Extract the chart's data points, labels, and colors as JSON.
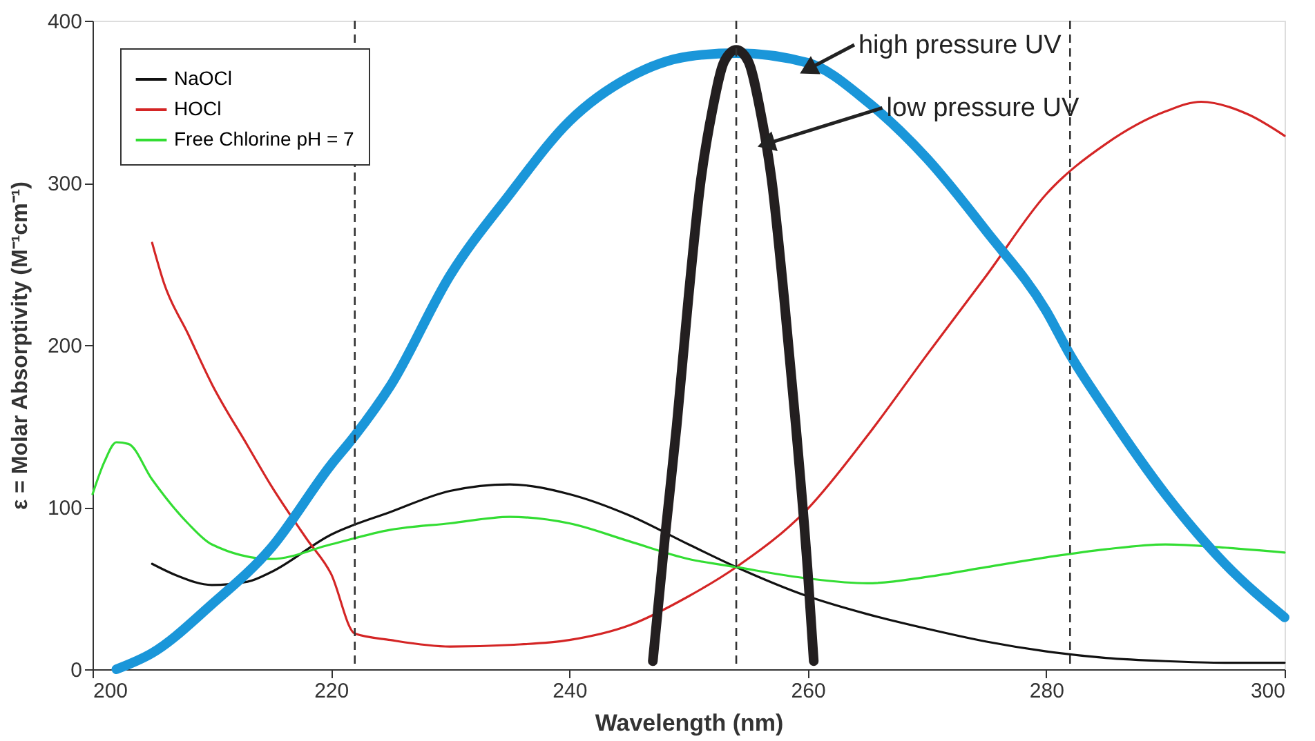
{
  "chart_data": {
    "type": "line",
    "xlabel": "Wavelength (nm)",
    "ylabel": "ε = Molar Absorptivity (M⁻¹cm⁻¹)",
    "xlim": [
      200,
      300
    ],
    "ylim": [
      0,
      400
    ],
    "xticks": [
      200,
      220,
      240,
      260,
      280,
      300
    ],
    "yticks": [
      0,
      100,
      200,
      300,
      400
    ],
    "grid": false,
    "legend": "top left",
    "line_style": "solid",
    "marker": "none",
    "series": [
      {
        "name": "NaOCl",
        "color": "#111111",
        "x": [
          205,
          207,
          210,
          213,
          215,
          220,
          225,
          230,
          235,
          240,
          245,
          250,
          254,
          260,
          265,
          270,
          275,
          280,
          285,
          290,
          295,
          300
        ],
        "values": [
          65,
          58,
          52,
          54,
          60,
          83,
          97,
          110,
          114,
          108,
          95,
          77,
          63,
          45,
          34,
          25,
          17,
          11,
          7,
          5,
          4,
          4
        ]
      },
      {
        "name": "HOCl",
        "color": "#d42525",
        "x": [
          205,
          206,
          208,
          210,
          213,
          215,
          218,
          220,
          222,
          225,
          230,
          235,
          240,
          245,
          250,
          254,
          260,
          265,
          270,
          275,
          280,
          285,
          290,
          293,
          297,
          300
        ],
        "values": [
          263,
          238,
          207,
          176,
          138,
          113,
          80,
          59,
          22,
          18,
          14,
          15,
          18,
          27,
          45,
          63,
          99,
          144,
          194,
          243,
          293,
          324,
          344,
          350,
          342,
          329
        ]
      },
      {
        "name": "Free Chlorine pH = 7",
        "color": "#33dd33",
        "x": [
          200,
          201,
          202,
          203,
          205,
          208,
          210,
          215,
          220,
          225,
          230,
          235,
          240,
          245,
          250,
          254,
          260,
          265,
          270,
          275,
          280,
          285,
          290,
          295,
          300
        ],
        "values": [
          108,
          128,
          140,
          139,
          117,
          90,
          77,
          68,
          77,
          86,
          90,
          94,
          90,
          79,
          68,
          63,
          56,
          53,
          57,
          63,
          69,
          74,
          77,
          75,
          72
        ]
      },
      {
        "color": "#1a96d9",
        "x": [
          202,
          205,
          210,
          215,
          220,
          222,
          225,
          230,
          235,
          240,
          245,
          250,
          254,
          260,
          265,
          270,
          275,
          280,
          282,
          285,
          290,
          295,
          300
        ],
        "values": [
          0,
          10,
          40,
          75,
          126,
          144,
          175,
          243,
          293,
          338,
          365,
          378,
          380,
          374,
          350,
          315,
          270,
          221,
          194,
          160,
          108,
          65,
          32
        ]
      },
      {
        "color": "#231f20",
        "x": [
          247,
          248,
          249,
          250,
          251,
          252,
          253,
          254,
          255,
          256,
          257,
          258,
          259,
          260,
          260.5
        ],
        "values": [
          5,
          80,
          150,
          230,
          300,
          345,
          375,
          382,
          375,
          345,
          300,
          230,
          150,
          60,
          5
        ]
      }
    ],
    "ref_lines": [
      {
        "axis": "x",
        "value": 222,
        "line_style": "dashed"
      },
      {
        "axis": "x",
        "value": 254,
        "line_style": "dashed"
      },
      {
        "axis": "x",
        "value": 282,
        "line_style": "dashed"
      }
    ],
    "annotations": [
      {
        "text": "high pressure UV",
        "x": 260,
        "y": 370
      },
      {
        "text": "low pressure UV",
        "x": 256.5,
        "y": 324
      }
    ]
  }
}
